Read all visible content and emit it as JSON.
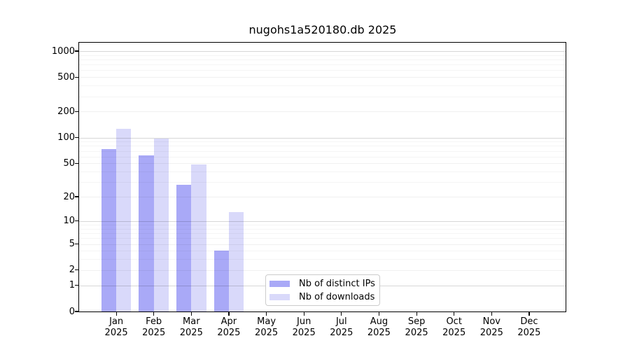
{
  "title": "nugohs1a520180.db 2025",
  "chart_data": {
    "type": "bar",
    "title": "nugohs1a520180.db 2025",
    "y_scale": "log10(1+x)",
    "grid": true,
    "categories": [
      "Jan",
      "Feb",
      "Mar",
      "Apr",
      "May",
      "Jun",
      "Jul",
      "Aug",
      "Sep",
      "Oct",
      "Nov",
      "Dec"
    ],
    "year_label": "2025",
    "series": [
      {
        "name": "Nb of distinct IPs",
        "color": "#a9a9f7",
        "values": [
          73,
          62,
          28,
          4,
          0,
          0,
          0,
          0,
          0,
          0,
          0,
          0
        ]
      },
      {
        "name": "Nb of downloads",
        "color": "#d9d9fa",
        "values": [
          126,
          97,
          48,
          13,
          0,
          0,
          0,
          0,
          0,
          0,
          0,
          0
        ]
      }
    ],
    "y_ticks": [
      0,
      1,
      2,
      5,
      10,
      20,
      50,
      100,
      200,
      500,
      1000
    ],
    "ylim": [
      0,
      1250
    ],
    "xlabel": "",
    "ylabel": "",
    "legend_position": "bottom-center-inside"
  }
}
